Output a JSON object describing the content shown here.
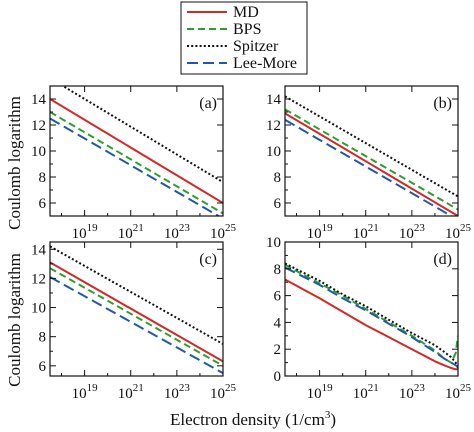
{
  "chart_data": {
    "type": "line",
    "layout": "2x2 grid",
    "shared_xlabel": "Electron density (1/cm",
    "shared_xlabel_sup": "3",
    "shared_xlabel_tail": ")",
    "shared_ylabel": "Coulomb logarithm",
    "x_scale": "log",
    "xlim_exponent": [
      17.5,
      25
    ],
    "x_tick_exponents": [
      19,
      21,
      23,
      25
    ],
    "x_tick_base": "10",
    "legend": {
      "placement": "top-center",
      "entries": [
        {
          "name": "MD",
          "color": "#d62728",
          "style": "solid"
        },
        {
          "name": "BPS",
          "color": "#2ca02c",
          "style": "dashed"
        },
        {
          "name": "Spitzer",
          "color": "#111111",
          "style": "dotted"
        },
        {
          "name": "Lee-More",
          "color": "#1f5aa6",
          "style": "longdash"
        }
      ]
    },
    "panels": [
      {
        "tag": "(a)",
        "ylim": [
          5,
          15
        ],
        "yticks": [
          "6",
          "8",
          "10",
          "12",
          "14"
        ],
        "x_log10": [
          17.5,
          25
        ],
        "series": [
          {
            "name": "MD",
            "values": [
              14.0,
              6.0
            ]
          },
          {
            "name": "BPS",
            "values": [
              13.0,
              5.2
            ]
          },
          {
            "name": "Spitzer",
            "values": [
              15.6,
              7.6
            ]
          },
          {
            "name": "Lee-More",
            "values": [
              12.5,
              4.8
            ]
          }
        ]
      },
      {
        "tag": "(b)",
        "ylim": [
          5,
          15
        ],
        "yticks": [
          "6",
          "8",
          "10",
          "12",
          "14"
        ],
        "x_log10": [
          17.5,
          25
        ],
        "series": [
          {
            "name": "MD",
            "values": [
              12.9,
              5.0
            ]
          },
          {
            "name": "BPS",
            "values": [
              13.2,
              5.5
            ]
          },
          {
            "name": "Spitzer",
            "values": [
              14.2,
              6.5
            ]
          },
          {
            "name": "Lee-More",
            "values": [
              12.4,
              4.7
            ]
          }
        ]
      },
      {
        "tag": "(c)",
        "ylim": [
          5.3,
          14.5
        ],
        "yticks": [
          "6",
          "8",
          "10",
          "12",
          "14"
        ],
        "x_log10": [
          17.5,
          25
        ],
        "series": [
          {
            "name": "MD",
            "values": [
              13.1,
              6.3
            ]
          },
          {
            "name": "BPS",
            "values": [
              12.7,
              6.0
            ]
          },
          {
            "name": "Spitzer",
            "values": [
              14.2,
              7.5
            ]
          },
          {
            "name": "Lee-More",
            "values": [
              12.1,
              5.5
            ]
          }
        ]
      },
      {
        "tag": "(d)",
        "ylim": [
          0,
          10
        ],
        "yticks": [
          "0",
          "2",
          "4",
          "6",
          "8",
          "10"
        ],
        "x_log10": [
          17.5,
          19,
          20,
          21,
          22,
          23,
          24,
          24.4,
          24.7,
          24.9,
          25
        ],
        "series": [
          {
            "name": "MD",
            "values": [
              7.2,
              5.8,
              4.8,
              3.8,
              2.9,
              2.0,
              1.1,
              0.8,
              0.6,
              0.5,
              0.5
            ]
          },
          {
            "name": "BPS",
            "values": [
              8.3,
              6.9,
              6.0,
              5.0,
              4.0,
              3.0,
              1.9,
              1.3,
              1.0,
              1.7,
              3.0
            ]
          },
          {
            "name": "Spitzer",
            "values": [
              8.4,
              7.1,
              6.1,
              5.2,
              4.2,
              3.2,
              2.3,
              1.8,
              1.4,
              1.0,
              0.6
            ]
          },
          {
            "name": "Lee-More",
            "values": [
              8.1,
              6.8,
              5.8,
              4.9,
              3.9,
              2.9,
              1.8,
              1.3,
              1.0,
              0.8,
              0.7
            ]
          }
        ]
      }
    ]
  }
}
